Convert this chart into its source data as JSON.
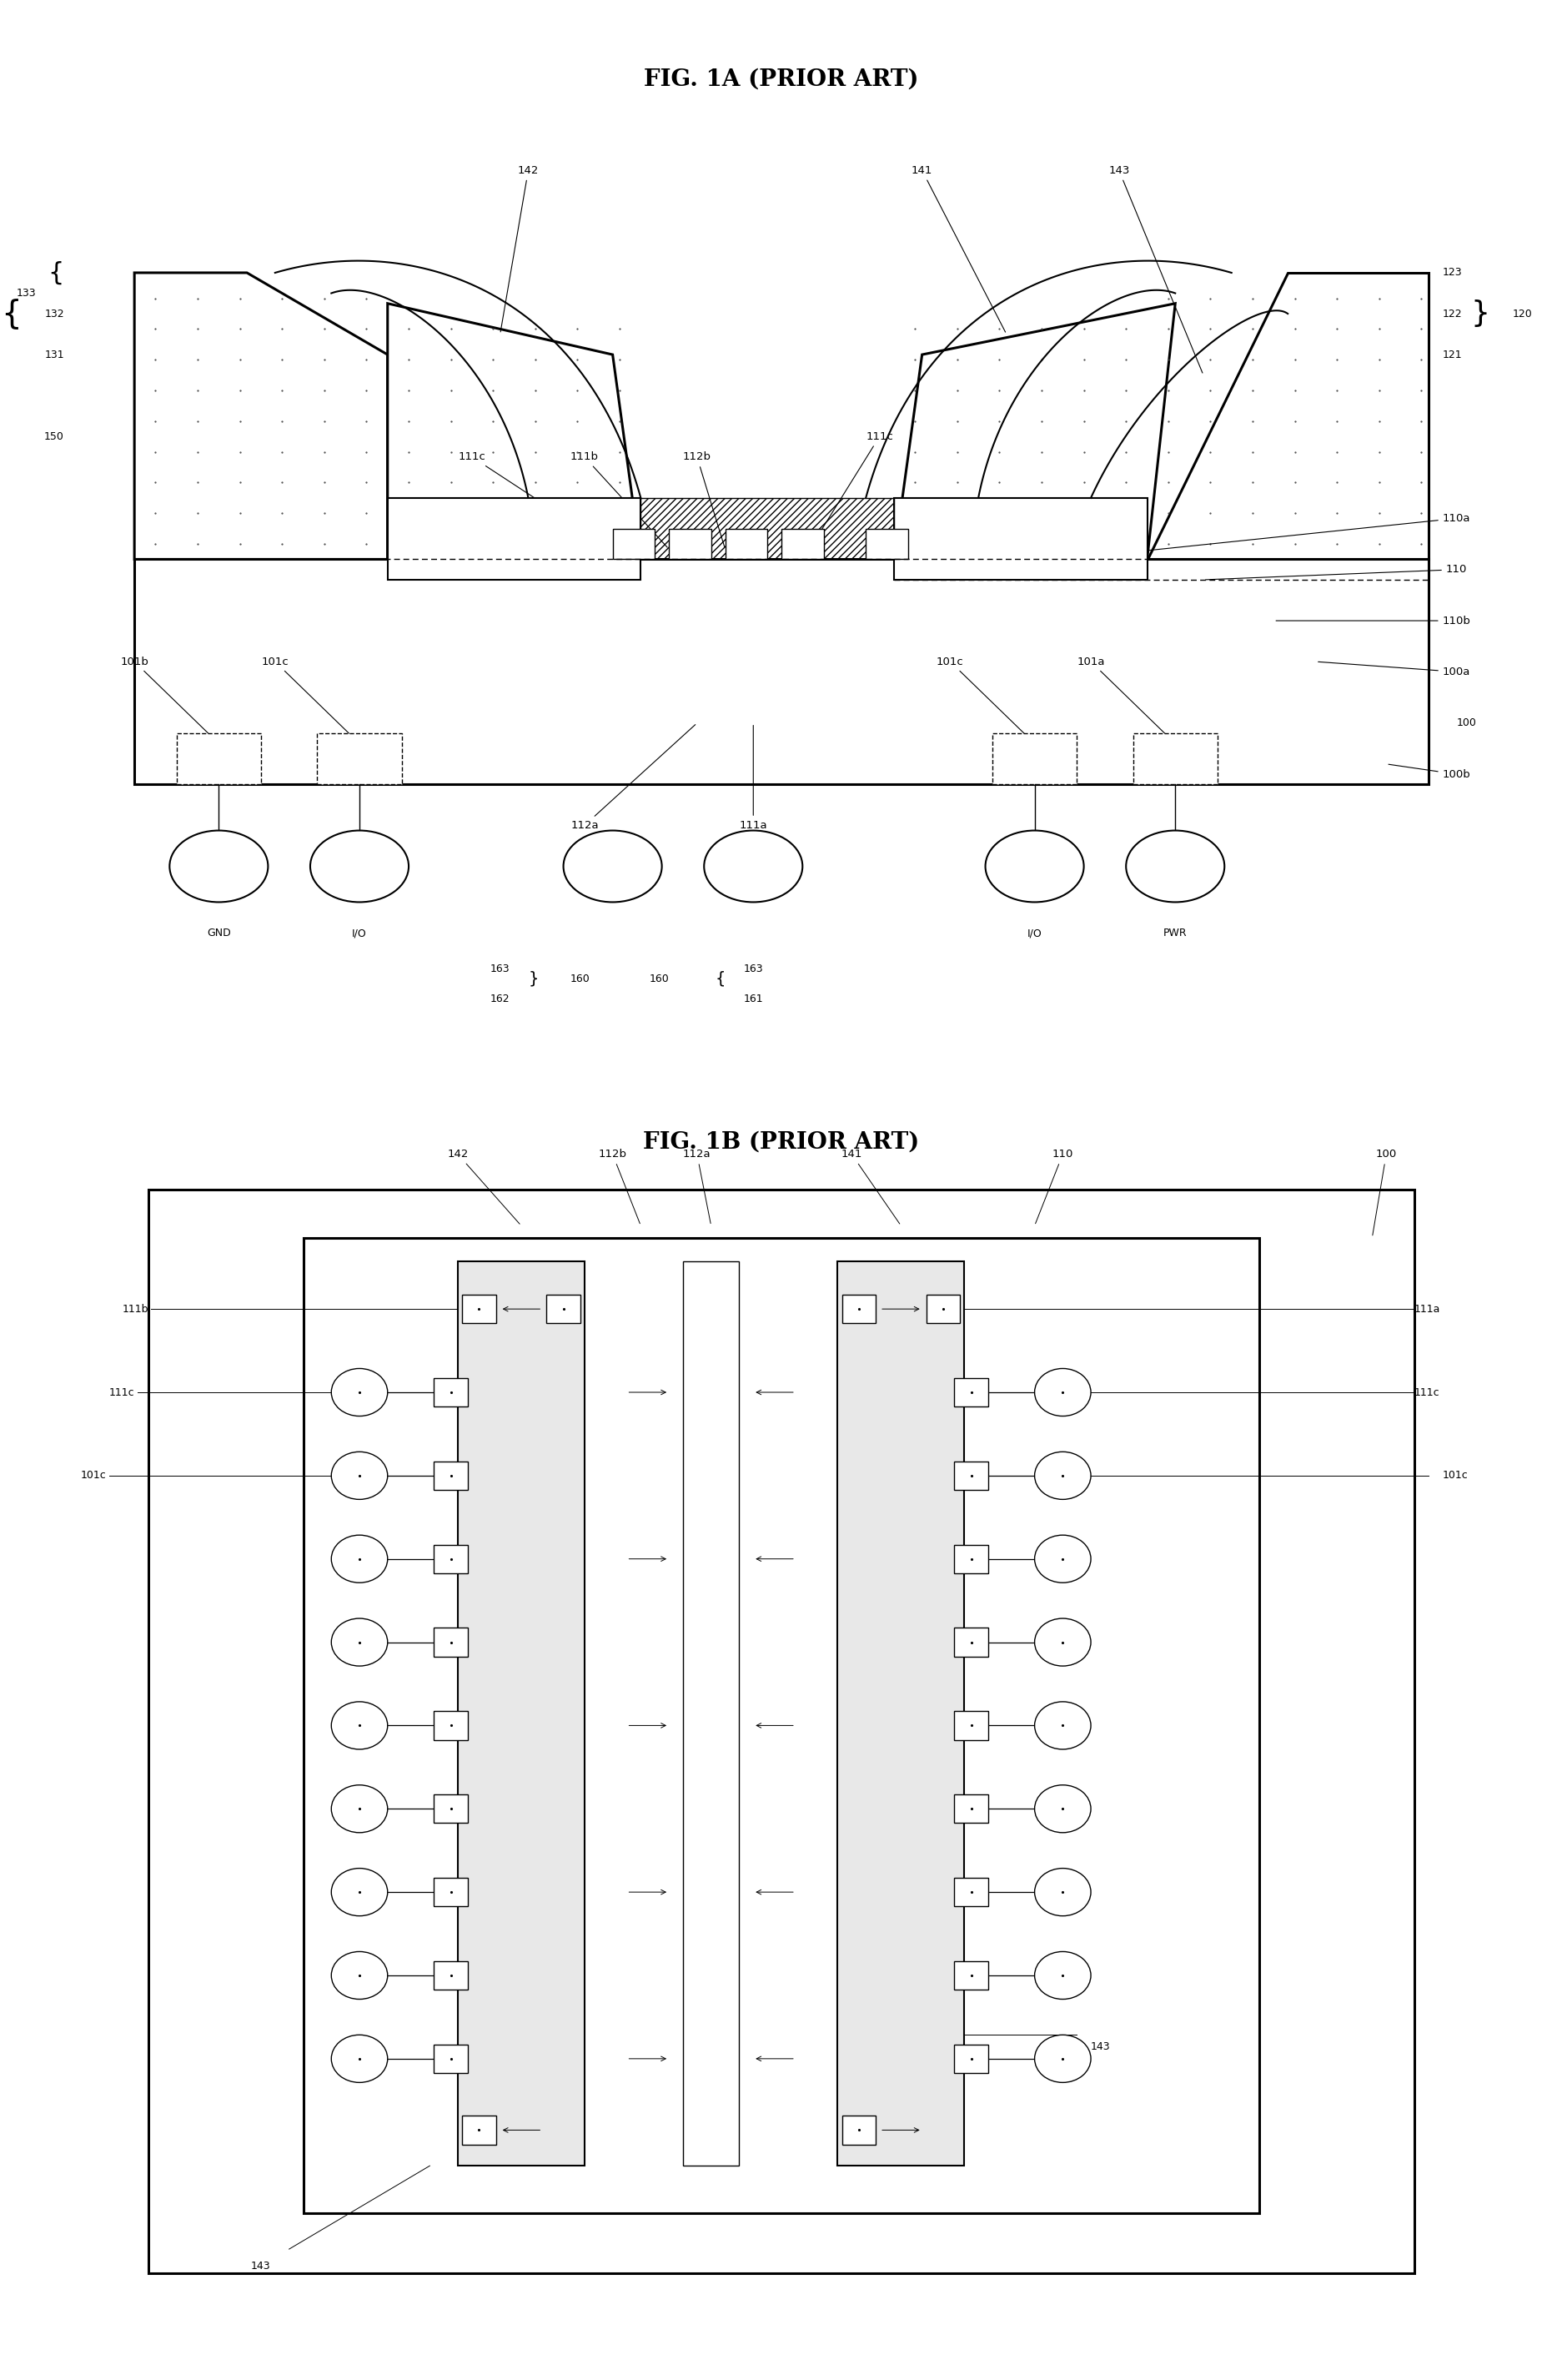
{
  "title_1A": "FIG. 1A (PRIOR ART)",
  "title_1B": "FIG. 1B (PRIOR ART)",
  "bg_color": "#ffffff",
  "fig_width": 18.74,
  "fig_height": 28.53,
  "lw_thick": 2.2,
  "lw_med": 1.5,
  "lw_thin": 1.0,
  "fs_title": 20,
  "fs_label": 10
}
